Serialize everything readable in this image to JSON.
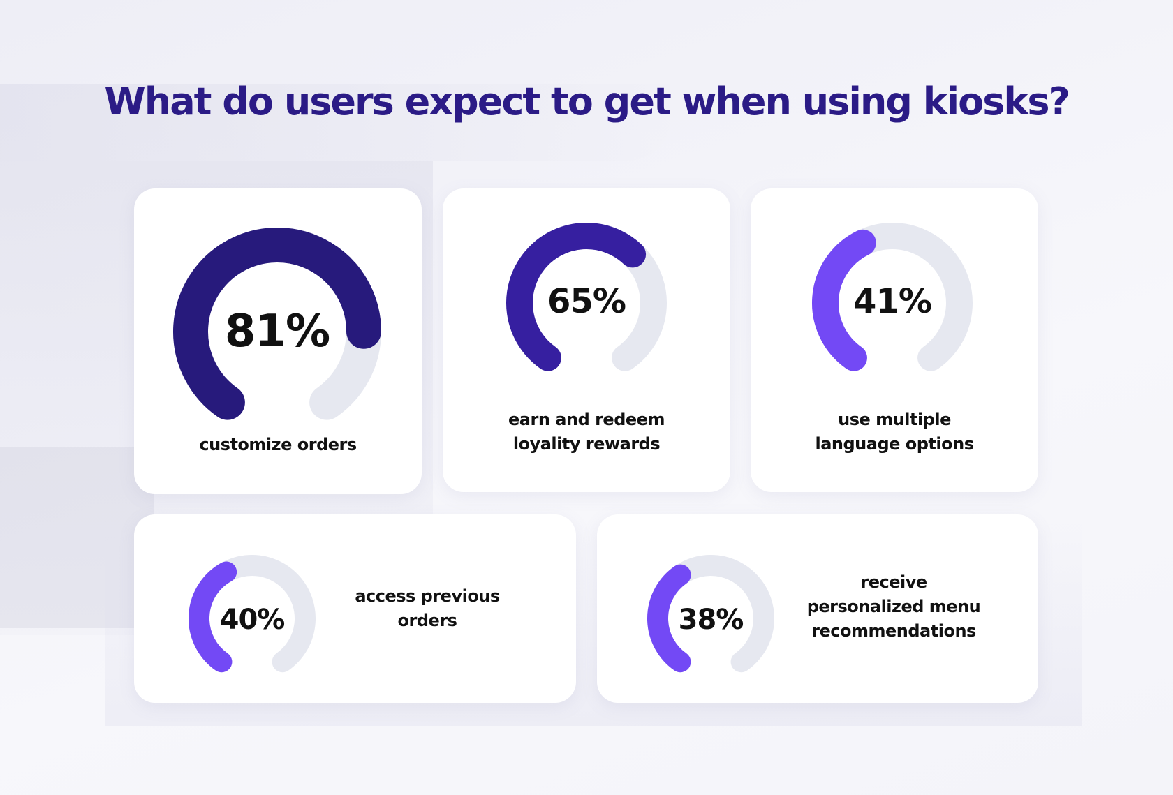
{
  "title": "What do users expect to get when using kiosks?",
  "colors": {
    "title": "#2b1b86",
    "track": "#e6e8f0",
    "dark_navy": "#271a7c",
    "indigo": "#361fa0",
    "violet": "#7349f5"
  },
  "chart_data": {
    "type": "gauge",
    "title": "What do users expect to get when using kiosks?",
    "max": 100,
    "unit": "%",
    "items": [
      {
        "label": "81%",
        "value": 81,
        "caption": [
          "customize orders"
        ],
        "color": "#271a7c"
      },
      {
        "label": "65%",
        "value": 65,
        "caption": [
          "earn and redeem",
          "loyality rewards"
        ],
        "color": "#361fa0"
      },
      {
        "label": "41%",
        "value": 41,
        "caption": [
          "use multiple",
          "language options"
        ],
        "color": "#7349f5"
      },
      {
        "label": "40%",
        "value": 40,
        "caption": [
          "access previous",
          "orders"
        ],
        "color": "#7349f5"
      },
      {
        "label": "38%",
        "value": 38,
        "caption": [
          "receive",
          "personalized menu",
          "recommendations"
        ],
        "color": "#7349f5"
      }
    ]
  }
}
